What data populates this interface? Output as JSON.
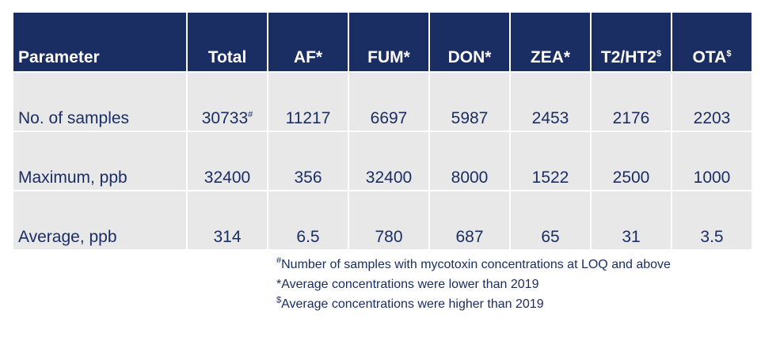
{
  "table": {
    "headers": [
      {
        "label": "Parameter",
        "sup": ""
      },
      {
        "label": "Total",
        "sup": ""
      },
      {
        "label": "AF*",
        "sup": ""
      },
      {
        "label": "FUM*",
        "sup": ""
      },
      {
        "label": "DON*",
        "sup": ""
      },
      {
        "label": "ZEA*",
        "sup": ""
      },
      {
        "label": "T2/HT2",
        "sup": "$"
      },
      {
        "label": "OTA",
        "sup": "$"
      }
    ],
    "rows": [
      {
        "label": "No. of samples",
        "total": "30733",
        "total_sup": "#",
        "af": "11217",
        "fum": "6697",
        "don": "5987",
        "zea": "2453",
        "t2ht2": "2176",
        "ota": "2203"
      },
      {
        "label": "Maximum, ppb",
        "total": "32400",
        "total_sup": "",
        "af": "356",
        "fum": "32400",
        "don": "8000",
        "zea": "1522",
        "t2ht2": "2500",
        "ota": "1000"
      },
      {
        "label": "Average, ppb",
        "total": "314",
        "total_sup": "",
        "af": "6.5",
        "fum": "780",
        "don": "687",
        "zea": "65",
        "t2ht2": "31",
        "ota": "3.5"
      }
    ]
  },
  "footnotes": [
    {
      "mark": "#",
      "text": "Number of samples with mycotoxin concentrations at LOQ and above"
    },
    {
      "mark": "",
      "text": "*Average concentrations were lower than 2019"
    },
    {
      "mark": "$",
      "text": "Average concentrations were higher than 2019"
    }
  ],
  "colors": {
    "header_bg": "#1b2e63",
    "cell_bg": "#e8e8e8",
    "text": "#1b2e63"
  }
}
